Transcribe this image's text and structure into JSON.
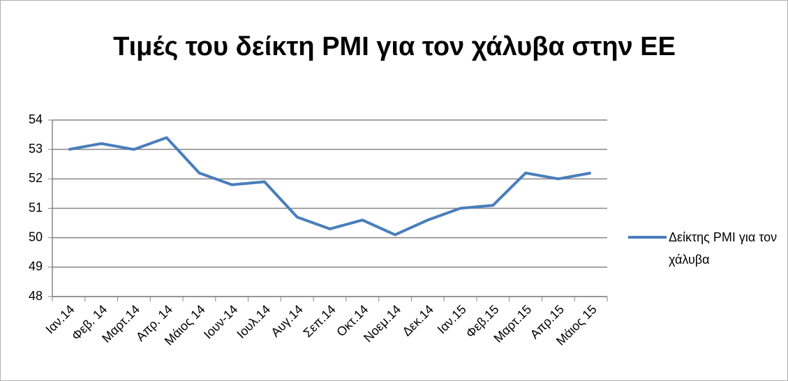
{
  "chart_data": {
    "type": "line",
    "title": "Τιμές του δείκτη PMI για τον χάλυβα στην ΕΕ",
    "categories": [
      "Ιαν.14",
      "Φεβ. 14",
      "Μαρτ.14",
      "Απρ. 14",
      "Μάιος 14",
      "Ιουν-14",
      "Ιουλ.14",
      "Αυγ.14",
      "Σεπ.14",
      "Οκτ.14",
      "Νοεμ.14",
      "Δεκ.14",
      "Ιαν.15",
      "Φεβ.15",
      "Μαρτ.15",
      "Απρ.15",
      "Μάιος 15"
    ],
    "series": [
      {
        "name": "Δείκτης PMI για τον χάλυβα",
        "color": "#4a7ebb",
        "values": [
          53,
          53.2,
          53,
          53.4,
          52.2,
          51.8,
          51.9,
          50.7,
          50.3,
          50.6,
          50.1,
          50.6,
          51.0,
          51.1,
          52.2,
          52.0,
          52.2
        ]
      }
    ],
    "ylim": [
      48,
      54
    ],
    "yticks": [
      48,
      49,
      50,
      51,
      52,
      53,
      54
    ],
    "grid": true,
    "legend": "right"
  }
}
